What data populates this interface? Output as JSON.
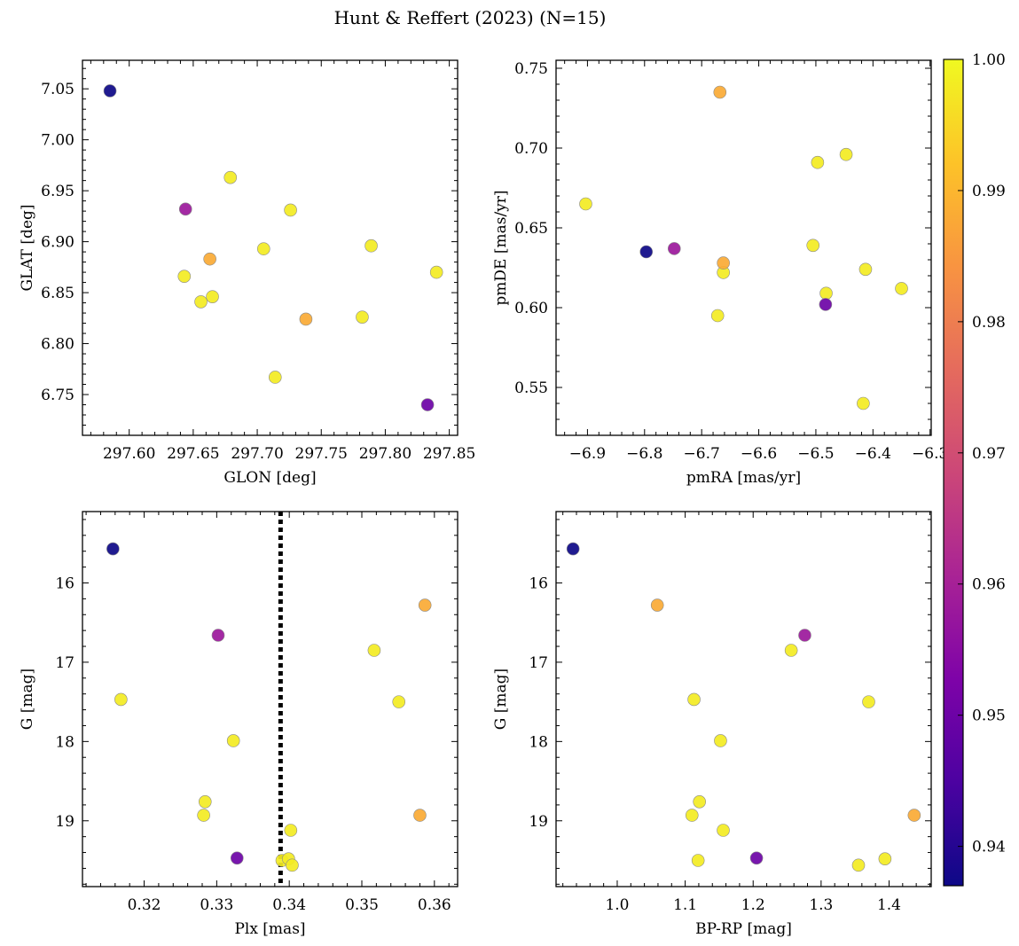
{
  "figure": {
    "title": "Hunt & Reffert (2023) (N=15)"
  },
  "chart_data": {
    "type": "scatter",
    "colorbar": {
      "colormap": "plasma",
      "range": [
        0.937,
        1.0
      ],
      "ticks": [
        0.94,
        0.95,
        0.96,
        0.97,
        0.98,
        0.99,
        1.0
      ],
      "tick_labels": [
        "0.94",
        "0.95",
        "0.96",
        "0.97",
        "0.98",
        "0.99",
        "1.00"
      ]
    },
    "stars": [
      {
        "glon": 297.585,
        "glat": 7.048,
        "pmra": -6.797,
        "pmde": 0.635,
        "plx": 0.3157,
        "bprp": 0.935,
        "g": 15.57,
        "prob": 0.937
      },
      {
        "glon": 297.644,
        "glat": 6.932,
        "pmra": -6.748,
        "pmde": 0.637,
        "plx": 0.3302,
        "bprp": 1.276,
        "g": 16.66,
        "prob": 0.958
      },
      {
        "glon": 297.833,
        "glat": 6.74,
        "pmra": -6.483,
        "pmde": 0.602,
        "plx": 0.3328,
        "bprp": 1.205,
        "g": 19.47,
        "prob": 0.95
      },
      {
        "glon": 297.663,
        "glat": 6.883,
        "pmra": -6.668,
        "pmde": 0.735,
        "plx": 0.3587,
        "bprp": 1.059,
        "g": 16.28,
        "prob": 0.988
      },
      {
        "glon": 297.738,
        "glat": 6.824,
        "pmra": -6.662,
        "pmde": 0.628,
        "plx": 0.358,
        "bprp": 1.437,
        "g": 18.93,
        "prob": 0.988
      },
      {
        "glon": 297.679,
        "glat": 6.963,
        "pmra": -6.903,
        "pmde": 0.665,
        "plx": 0.3168,
        "bprp": 1.113,
        "g": 17.47,
        "prob": 0.998
      },
      {
        "glon": 297.643,
        "glat": 6.866,
        "pmra": -6.497,
        "pmde": 0.691,
        "plx": 0.3517,
        "bprp": 1.256,
        "g": 16.85,
        "prob": 0.998
      },
      {
        "glon": 297.656,
        "glat": 6.841,
        "pmra": -6.447,
        "pmde": 0.696,
        "plx": 0.3551,
        "bprp": 1.37,
        "g": 17.5,
        "prob": 0.998
      },
      {
        "glon": 297.665,
        "glat": 6.846,
        "pmra": -6.505,
        "pmde": 0.639,
        "plx": 0.3323,
        "bprp": 1.152,
        "g": 17.99,
        "prob": 0.998
      },
      {
        "glon": 297.705,
        "glat": 6.893,
        "pmra": -6.662,
        "pmde": 0.622,
        "plx": 0.3284,
        "bprp": 1.121,
        "g": 18.76,
        "prob": 0.998
      },
      {
        "glon": 297.726,
        "glat": 6.931,
        "pmra": -6.413,
        "pmde": 0.624,
        "plx": 0.3282,
        "bprp": 1.11,
        "g": 18.93,
        "prob": 0.998
      },
      {
        "glon": 297.789,
        "glat": 6.896,
        "pmra": -6.35,
        "pmde": 0.612,
        "plx": 0.3402,
        "bprp": 1.156,
        "g": 19.12,
        "prob": 0.998
      },
      {
        "glon": 297.782,
        "glat": 6.826,
        "pmra": -6.482,
        "pmde": 0.609,
        "plx": 0.339,
        "bprp": 1.119,
        "g": 19.5,
        "prob": 0.998
      },
      {
        "glon": 297.714,
        "glat": 6.767,
        "pmra": -6.672,
        "pmde": 0.595,
        "plx": 0.3399,
        "bprp": 1.394,
        "g": 19.48,
        "prob": 0.998
      },
      {
        "glon": 297.84,
        "glat": 6.87,
        "pmra": -6.417,
        "pmde": 0.54,
        "plx": 0.3404,
        "bprp": 1.355,
        "g": 19.56,
        "prob": 0.998
      }
    ],
    "panels": [
      {
        "x": "glon",
        "y": "glat",
        "xlabel": "GLON [deg]",
        "ylabel": "GLAT [deg]",
        "xlim": [
          297.5635,
          297.8565
        ],
        "ylim": [
          6.71,
          7.078
        ],
        "xticks": [
          297.6,
          297.65,
          297.7,
          297.75,
          297.8,
          297.85
        ],
        "xtick_labels": [
          "297.60",
          "297.65",
          "297.70",
          "297.75",
          "297.80",
          "297.85"
        ],
        "yticks": [
          6.75,
          6.8,
          6.85,
          6.9,
          6.95,
          7.0,
          7.05
        ],
        "ytick_labels": [
          "6.75",
          "6.80",
          "6.85",
          "6.90",
          "6.95",
          "7.00",
          "7.05"
        ]
      },
      {
        "x": "pmra",
        "y": "pmde",
        "xlabel": "pmRA [mas/yr]",
        "ylabel": "pmDE [mas/yr]",
        "xlim": [
          -6.955,
          -6.298
        ],
        "ylim": [
          0.52,
          0.755
        ],
        "xticks": [
          -6.9,
          -6.8,
          -6.7,
          -6.6,
          -6.5,
          -6.4,
          -6.3
        ],
        "xtick_labels": [
          "−6.9",
          "−6.8",
          "−6.7",
          "−6.6",
          "−6.5",
          "−6.4",
          "−6.3"
        ],
        "yticks": [
          0.55,
          0.6,
          0.65,
          0.7,
          0.75
        ],
        "ytick_labels": [
          "0.55",
          "0.60",
          "0.65",
          "0.70",
          "0.75"
        ]
      },
      {
        "x": "plx",
        "y": "g",
        "xlabel": "Plx [mas]",
        "ylabel": "G [mag]",
        "xlim": [
          0.3115,
          0.3632
        ],
        "ylim": [
          19.83,
          15.1
        ],
        "y_inverted": true,
        "xticks": [
          0.32,
          0.33,
          0.34,
          0.35,
          0.36
        ],
        "xtick_labels": [
          "0.32",
          "0.33",
          "0.34",
          "0.35",
          "0.36"
        ],
        "yticks": [
          16,
          17,
          18,
          19
        ],
        "ytick_labels": [
          "16",
          "17",
          "18",
          "19"
        ],
        "vline": {
          "x": 0.3388,
          "style": "dotted"
        }
      },
      {
        "x": "bprp",
        "y": "g",
        "xlabel": "BP-RP [mag]",
        "ylabel": "G [mag]",
        "xlim": [
          0.91,
          1.462
        ],
        "ylim": [
          19.83,
          15.1
        ],
        "y_inverted": true,
        "xticks": [
          1.0,
          1.1,
          1.2,
          1.3,
          1.4
        ],
        "xtick_labels": [
          "1.0",
          "1.1",
          "1.2",
          "1.3",
          "1.4"
        ],
        "yticks": [
          16,
          17,
          18,
          19
        ],
        "ytick_labels": [
          "16",
          "17",
          "18",
          "19"
        ]
      }
    ]
  }
}
